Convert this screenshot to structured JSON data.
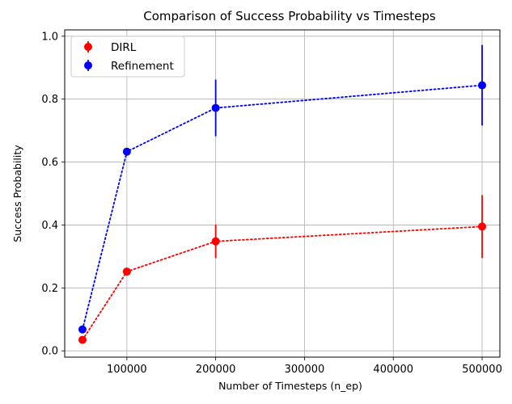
{
  "chart_data": {
    "type": "line",
    "title": "Comparison of Success Probability vs Timesteps",
    "xlabel": "Number of Timesteps (n_ep)",
    "ylabel": "Success Probability",
    "x": [
      50000,
      100000,
      200000,
      500000
    ],
    "xlim": [
      30000,
      520000
    ],
    "ylim": [
      -0.02,
      1.02
    ],
    "xticks": [
      100000,
      200000,
      300000,
      400000,
      500000
    ],
    "yticks": [
      0.0,
      0.2,
      0.4,
      0.6,
      0.8,
      1.0
    ],
    "grid": true,
    "legend_position": "top-left",
    "series": [
      {
        "name": "DIRL",
        "color": "#ff0000",
        "values": [
          0.035,
          0.252,
          0.348,
          0.395
        ],
        "errors": [
          0.0,
          0.0,
          0.053,
          0.1
        ]
      },
      {
        "name": "Refinement",
        "color": "#0000ff",
        "values": [
          0.068,
          0.633,
          0.772,
          0.844
        ],
        "errors": [
          0.0,
          0.0,
          0.09,
          0.128
        ]
      }
    ]
  }
}
